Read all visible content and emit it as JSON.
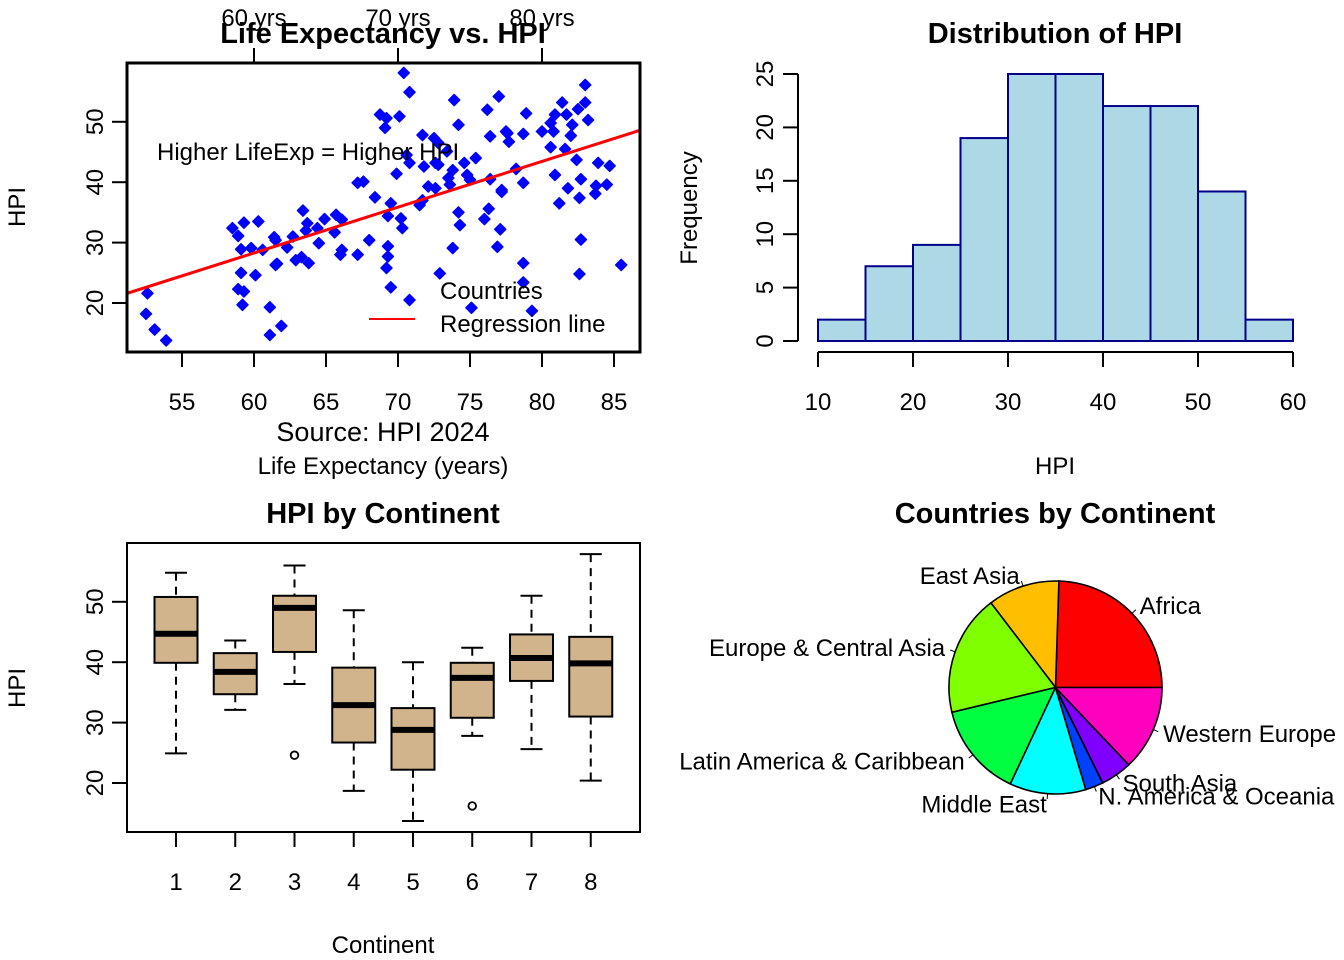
{
  "colors": {
    "scatter_point": "#0000ff",
    "regression_line": "#ff0000",
    "annotation": "#a020f0",
    "source_note": "#666666",
    "hist_fill": "#add8e6",
    "hist_border": "#00008b",
    "box_fill": "#d2b48c"
  },
  "chart_data": [
    {
      "type": "scatter",
      "title": "Life Expectancy vs. HPI",
      "xlabel": "Life Expectancy (years)",
      "ylabel": "HPI",
      "xlim": [
        51.2,
        86.8
      ],
      "ylim": [
        12.5,
        60.5
      ],
      "x_ticks": [
        "55",
        "60",
        "65",
        "70",
        "75",
        "80",
        "85"
      ],
      "x_tick_values": [
        55,
        60,
        65,
        70,
        75,
        80,
        85
      ],
      "y_ticks": [
        "20",
        "30",
        "40",
        "50"
      ],
      "y_tick_values": [
        20,
        30,
        40,
        50
      ],
      "top_axis_ticks": [
        "60 yrs",
        "70 yrs",
        "80 yrs"
      ],
      "top_axis_values": [
        60,
        70,
        80
      ],
      "annotation": "Higher LifeExp = Higher HPI",
      "annotation_at": [
        63.5,
        44.5
      ],
      "source_note": "Source: HPI 2024",
      "legend": {
        "position": "bottom-right",
        "entries": [
          "Countries",
          "Regression line"
        ]
      },
      "regression": {
        "slope": 0.758,
        "intercept": -17.2
      },
      "points": [
        [
          52.6,
          21.6
        ],
        [
          52.5,
          18.2
        ],
        [
          53.1,
          15.6
        ],
        [
          53.9,
          13.8
        ],
        [
          58.5,
          32.4
        ],
        [
          58.9,
          31.1
        ],
        [
          59.3,
          33.3
        ],
        [
          60.3,
          33.5
        ],
        [
          59.1,
          28.9
        ],
        [
          59.8,
          29.1
        ],
        [
          60.6,
          28.8
        ],
        [
          61.4,
          30.9
        ],
        [
          61.6,
          26.5
        ],
        [
          59.1,
          25.0
        ],
        [
          60.1,
          24.6
        ],
        [
          58.9,
          22.3
        ],
        [
          59.3,
          21.9
        ],
        [
          59.2,
          19.7
        ],
        [
          61.1,
          19.3
        ],
        [
          61.9,
          16.2
        ],
        [
          61.1,
          14.7
        ],
        [
          61.5,
          30.4
        ],
        [
          62.3,
          29.2
        ],
        [
          62.7,
          31.0
        ],
        [
          63.4,
          35.3
        ],
        [
          63.7,
          33.2
        ],
        [
          63.6,
          32.0
        ],
        [
          64.4,
          32.4
        ],
        [
          64.9,
          33.9
        ],
        [
          65.7,
          34.6
        ],
        [
          66.1,
          33.8
        ],
        [
          65.6,
          31.7
        ],
        [
          64.5,
          29.9
        ],
        [
          61.5,
          26.3
        ],
        [
          62.9,
          27.1
        ],
        [
          63.3,
          27.6
        ],
        [
          63.8,
          26.6
        ],
        [
          66.1,
          28.8
        ],
        [
          66.0,
          28.0
        ],
        [
          67.2,
          28.0
        ],
        [
          68.0,
          30.4
        ],
        [
          67.2,
          39.9
        ],
        [
          67.6,
          40.1
        ],
        [
          68.4,
          37.5
        ],
        [
          69.5,
          36.5
        ],
        [
          69.3,
          34.4
        ],
        [
          70.2,
          34.0
        ],
        [
          70.3,
          32.4
        ],
        [
          69.9,
          41.4
        ],
        [
          69.3,
          29.4
        ],
        [
          69.3,
          27.7
        ],
        [
          69.2,
          25.8
        ],
        [
          69.5,
          22.6
        ],
        [
          70.8,
          20.5
        ],
        [
          70.4,
          58.1
        ],
        [
          70.8,
          54.9
        ],
        [
          68.75,
          51.2
        ],
        [
          69.2,
          50.6
        ],
        [
          69.1,
          49.0
        ],
        [
          70.1,
          50.9
        ],
        [
          73.9,
          53.6
        ],
        [
          77.0,
          54.2
        ],
        [
          76.2,
          52.0
        ],
        [
          74.2,
          49.5
        ],
        [
          71.7,
          47.8
        ],
        [
          72.5,
          47.3
        ],
        [
          72.8,
          46.5
        ],
        [
          73.4,
          45.1
        ],
        [
          70.6,
          44.5
        ],
        [
          70.8,
          43.2
        ],
        [
          71.8,
          42.6
        ],
        [
          72.6,
          43.2
        ],
        [
          72.8,
          42.9
        ],
        [
          73.8,
          42.0
        ],
        [
          74.6,
          43.2
        ],
        [
          75.4,
          44.0
        ],
        [
          76.4,
          47.6
        ],
        [
          77.6,
          48.1
        ],
        [
          73.5,
          40.7
        ],
        [
          73.6,
          39.6
        ],
        [
          74.8,
          41.2
        ],
        [
          75.0,
          40.4
        ],
        [
          72.1,
          39.3
        ],
        [
          72.6,
          39.0
        ],
        [
          76.4,
          40.5
        ],
        [
          77.2,
          38.7
        ],
        [
          71.7,
          37.0
        ],
        [
          71.5,
          36.2
        ],
        [
          83.0,
          56.1
        ],
        [
          81.4,
          53.2
        ],
        [
          83.0,
          53.2
        ],
        [
          82.5,
          52.1
        ],
        [
          78.9,
          51.4
        ],
        [
          80.9,
          51.2
        ],
        [
          81.7,
          51.2
        ],
        [
          83.2,
          50.3
        ],
        [
          80.6,
          49.8
        ],
        [
          82.1,
          49.5
        ],
        [
          80.0,
          48.4
        ],
        [
          80.8,
          48.4
        ],
        [
          77.5,
          48.4
        ],
        [
          78.7,
          48.0
        ],
        [
          82.0,
          47.7
        ],
        [
          77.7,
          46.7
        ],
        [
          80.6,
          45.8
        ],
        [
          81.6,
          45.5
        ],
        [
          82.4,
          43.7
        ],
        [
          83.9,
          43.2
        ],
        [
          84.7,
          42.7
        ],
        [
          78.2,
          42.2
        ],
        [
          80.9,
          41.2
        ],
        [
          78.7,
          39.9
        ],
        [
          82.7,
          40.5
        ],
        [
          81.8,
          39.0
        ],
        [
          83.75,
          39.4
        ],
        [
          84.5,
          39.6
        ],
        [
          77.2,
          38.4
        ],
        [
          83.7,
          38.1
        ],
        [
          82.6,
          37.4
        ],
        [
          81.2,
          36.5
        ],
        [
          74.2,
          35.0
        ],
        [
          74.3,
          32.9
        ],
        [
          76.3,
          35.6
        ],
        [
          76.0,
          33.9
        ],
        [
          77.1,
          32.2
        ],
        [
          73.8,
          29.1
        ],
        [
          76.9,
          29.3
        ],
        [
          82.7,
          30.5
        ],
        [
          78.7,
          26.6
        ],
        [
          85.5,
          26.3
        ],
        [
          72.9,
          24.9
        ],
        [
          82.6,
          24.8
        ],
        [
          78.7,
          23.4
        ],
        [
          75.1,
          19.2
        ],
        [
          79.3,
          18.7
        ]
      ]
    },
    {
      "type": "bar",
      "subtype": "histogram",
      "title": "Distribution of HPI",
      "xlabel": "HPI",
      "ylabel": "Frequency",
      "bin_edges": [
        10,
        15,
        20,
        25,
        30,
        35,
        40,
        45,
        50,
        55,
        60
      ],
      "values": [
        2,
        7,
        9,
        19,
        25,
        25,
        22,
        22,
        14,
        2
      ],
      "x_ticks": [
        "10",
        "20",
        "30",
        "40",
        "50",
        "60"
      ],
      "x_tick_values": [
        10,
        20,
        30,
        40,
        50,
        60
      ],
      "y_ticks": [
        "0",
        "5",
        "10",
        "15",
        "20",
        "25"
      ],
      "y_tick_values": [
        0,
        5,
        10,
        15,
        20,
        25
      ],
      "ylim": [
        0,
        25
      ]
    },
    {
      "type": "boxplot",
      "title": "HPI by Continent",
      "xlabel": "Continent",
      "ylabel": "HPI",
      "ylim": [
        12.5,
        60.5
      ],
      "categories": [
        "1",
        "2",
        "3",
        "4",
        "5",
        "6",
        "7",
        "8"
      ],
      "y_ticks": [
        "20",
        "30",
        "40",
        "50"
      ],
      "y_tick_values": [
        20,
        30,
        40,
        50
      ],
      "boxes": [
        {
          "min": 24.9,
          "q1": 39.9,
          "median": 44.7,
          "q3": 50.8,
          "max": 54.8,
          "outliers": []
        },
        {
          "min": 32.1,
          "q1": 34.7,
          "median": 38.4,
          "q3": 41.5,
          "max": 43.6,
          "outliers": []
        },
        {
          "min": 36.4,
          "q1": 41.7,
          "median": 49.0,
          "q3": 51.0,
          "max": 56.0,
          "outliers": [
            24.6
          ]
        },
        {
          "min": 18.7,
          "q1": 26.7,
          "median": 32.9,
          "q3": 39.1,
          "max": 48.6,
          "outliers": []
        },
        {
          "min": 13.7,
          "q1": 22.2,
          "median": 28.8,
          "q3": 32.4,
          "max": 40.0,
          "outliers": []
        },
        {
          "min": 27.8,
          "q1": 30.8,
          "median": 37.4,
          "q3": 39.9,
          "max": 42.4,
          "outliers": [
            16.2
          ]
        },
        {
          "min": 25.6,
          "q1": 36.9,
          "median": 40.7,
          "q3": 44.6,
          "max": 51.0,
          "outliers": []
        },
        {
          "min": 20.4,
          "q1": 31.0,
          "median": 39.8,
          "q3": 44.2,
          "max": 57.9,
          "outliers": []
        }
      ]
    },
    {
      "type": "pie",
      "title": "Countries by Continent",
      "slices": [
        {
          "label": "Africa",
          "value": 36,
          "color": "#ff0000"
        },
        {
          "label": "East Asia",
          "value": 16,
          "color": "#ffbf00"
        },
        {
          "label": "Europe & Central Asia",
          "value": 27,
          "color": "#80ff00"
        },
        {
          "label": "Latin America & Caribbean",
          "value": 21,
          "color": "#00ff40"
        },
        {
          "label": "Middle East",
          "value": 17,
          "color": "#00ffff"
        },
        {
          "label": "N. America & Oceania",
          "value": 4,
          "color": "#0040ff"
        },
        {
          "label": "South Asia",
          "value": 7,
          "color": "#8000ff"
        },
        {
          "label": "Western Europe",
          "value": 19,
          "color": "#ff00bf"
        }
      ]
    }
  ]
}
